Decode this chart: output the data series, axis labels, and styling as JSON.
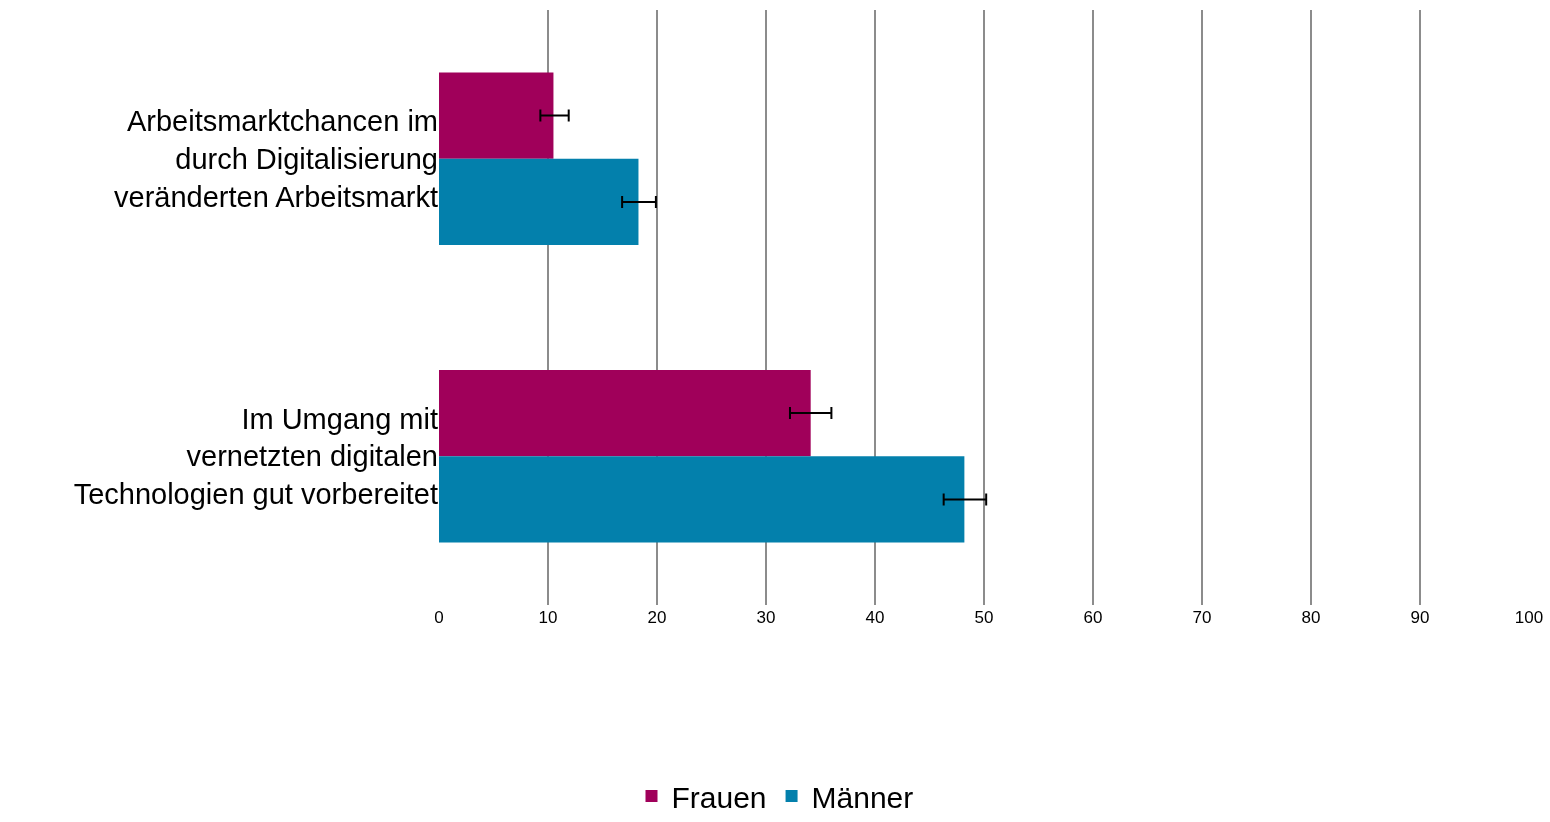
{
  "chart_data": {
    "type": "bar",
    "orientation": "horizontal",
    "categories": [
      "Arbeitsmarktchancen im\ndurch Digitalisierung\nveränderten Arbeitsmarkt",
      "Im Umgang mit\nvernetzten digitalen\nTechnologien gut vorbereitet"
    ],
    "series": [
      {
        "name": "Frauen",
        "color": "#a0005a",
        "values": [
          10.5,
          34.1
        ],
        "errors": [
          [
            9.3,
            11.9
          ],
          [
            32.2,
            36.0
          ]
        ]
      },
      {
        "name": "Männer",
        "color": "#0380ac",
        "values": [
          18.3,
          48.2
        ],
        "errors": [
          [
            16.8,
            19.9
          ],
          [
            46.3,
            50.2
          ]
        ]
      }
    ],
    "xlim": [
      0,
      100
    ],
    "xticks": [
      0,
      10,
      20,
      30,
      40,
      50,
      60,
      70,
      80,
      90,
      100
    ],
    "grid": "x",
    "legend": "bottom"
  }
}
